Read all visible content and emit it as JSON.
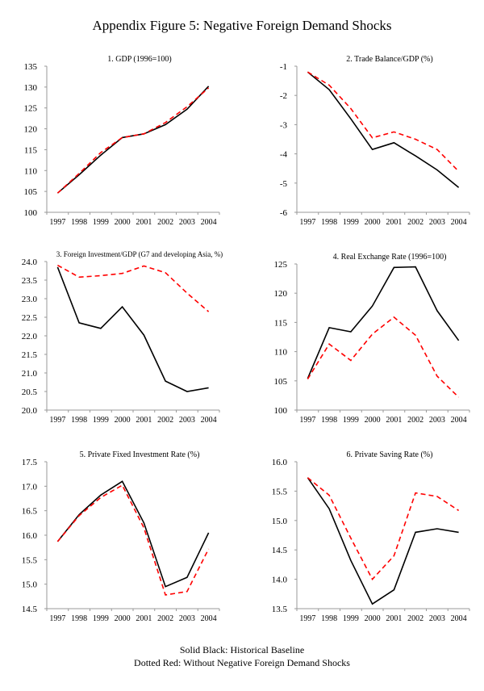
{
  "title": "Appendix Figure 5: Negative Foreign Demand Shocks",
  "legend": {
    "line1": "Solid Black: Historical Baseline",
    "line2": "Dotted Red: Without Negative Foreign Demand Shocks"
  },
  "colors": {
    "baseline": "#000000",
    "counterfactual": "#ff0000"
  },
  "chart_data": [
    {
      "type": "line",
      "title": "1. GDP (1996=100)",
      "categories": [
        "1997",
        "1998",
        "1999",
        "2000",
        "2001",
        "2002",
        "2003",
        "2004"
      ],
      "ylim": [
        100,
        135
      ],
      "yticks": [
        "100",
        "105",
        "110",
        "115",
        "120",
        "125",
        "130",
        "135"
      ],
      "series": [
        {
          "name": "Solid Black: Historical Baseline",
          "values": [
            104.6,
            109.0,
            113.7,
            117.9,
            118.8,
            121.0,
            124.7,
            130.2
          ]
        },
        {
          "name": "Dotted Red: Without Negative Foreign Demand Shocks",
          "values": [
            104.6,
            109.3,
            114.3,
            117.9,
            118.8,
            121.5,
            125.3,
            129.8
          ]
        }
      ]
    },
    {
      "type": "line",
      "title": "2. Trade Balance/GDP (%)",
      "categories": [
        "1997",
        "1998",
        "1999",
        "2000",
        "2001",
        "2002",
        "2003",
        "2004"
      ],
      "ylim": [
        -6,
        -1
      ],
      "yticks": [
        "-6",
        "-5",
        "-4",
        "-3",
        "-2",
        "-1"
      ],
      "series": [
        {
          "name": "Solid Black: Historical Baseline",
          "values": [
            -1.2,
            -1.8,
            -2.8,
            -3.85,
            -3.62,
            -4.07,
            -4.55,
            -5.15
          ]
        },
        {
          "name": "Dotted Red: Without Negative Foreign Demand Shocks",
          "values": [
            -1.2,
            -1.65,
            -2.45,
            -3.45,
            -3.25,
            -3.5,
            -3.85,
            -4.6
          ]
        }
      ]
    },
    {
      "type": "line",
      "title": "3. Foreign Investment/GDP (G7 and developing Asia, %)",
      "categories": [
        "1997",
        "1998",
        "1999",
        "2000",
        "2001",
        "2002",
        "2003",
        "2004"
      ],
      "ylim": [
        20.0,
        24.0
      ],
      "yticks": [
        "20.0",
        "20.5",
        "21.0",
        "21.5",
        "22.0",
        "22.5",
        "23.0",
        "23.5",
        "24.0"
      ],
      "series": [
        {
          "name": "Solid Black: Historical Baseline",
          "values": [
            23.85,
            22.35,
            22.2,
            22.78,
            22.02,
            20.78,
            20.5,
            20.6
          ]
        },
        {
          "name": "Dotted Red: Without Negative Foreign Demand Shocks",
          "values": [
            23.9,
            23.58,
            23.62,
            23.68,
            23.88,
            23.7,
            23.15,
            22.65
          ]
        }
      ]
    },
    {
      "type": "line",
      "title": "4. Real Exchange Rate (1996=100)",
      "categories": [
        "1997",
        "1998",
        "1999",
        "2000",
        "2001",
        "2002",
        "2003",
        "2004"
      ],
      "ylim": [
        100,
        125
      ],
      "yticks": [
        "100",
        "105",
        "110",
        "115",
        "120",
        "125"
      ],
      "series": [
        {
          "name": "Solid Black: Historical Baseline",
          "values": [
            105.4,
            114.1,
            113.4,
            117.8,
            124.4,
            124.5,
            117.0,
            111.9
          ]
        },
        {
          "name": "Dotted Red: Without Negative Foreign Demand Shocks",
          "values": [
            105.3,
            111.3,
            108.5,
            113.0,
            115.9,
            112.8,
            105.8,
            102.2
          ]
        }
      ]
    },
    {
      "type": "line",
      "title": "5. Private Fixed Investment Rate (%)",
      "categories": [
        "1997",
        "1998",
        "1999",
        "2000",
        "2001",
        "2002",
        "2003",
        "2004"
      ],
      "ylim": [
        14.5,
        17.5
      ],
      "yticks": [
        "14.5",
        "15.0",
        "15.5",
        "16.0",
        "16.5",
        "17.0",
        "17.5"
      ],
      "series": [
        {
          "name": "Solid Black: Historical Baseline",
          "values": [
            15.87,
            16.42,
            16.82,
            17.1,
            16.25,
            14.95,
            15.14,
            16.05
          ]
        },
        {
          "name": "Dotted Red: Without Negative Foreign Demand Shocks",
          "values": [
            15.87,
            16.4,
            16.77,
            17.02,
            16.15,
            14.78,
            14.85,
            15.72
          ]
        }
      ]
    },
    {
      "type": "line",
      "title": "6. Private Saving Rate (%)",
      "categories": [
        "1997",
        "1998",
        "1999",
        "2000",
        "2001",
        "2002",
        "2003",
        "2004"
      ],
      "ylim": [
        13.5,
        16.0
      ],
      "yticks": [
        "13.5",
        "14.0",
        "14.5",
        "15.0",
        "15.5",
        "16.0"
      ],
      "series": [
        {
          "name": "Solid Black: Historical Baseline",
          "values": [
            15.73,
            15.2,
            14.32,
            13.58,
            13.82,
            14.8,
            14.86,
            14.8
          ]
        },
        {
          "name": "Dotted Red: Without Negative Foreign Demand Shocks",
          "values": [
            15.73,
            15.43,
            14.7,
            14.0,
            14.4,
            15.47,
            15.41,
            15.17
          ]
        }
      ]
    }
  ]
}
